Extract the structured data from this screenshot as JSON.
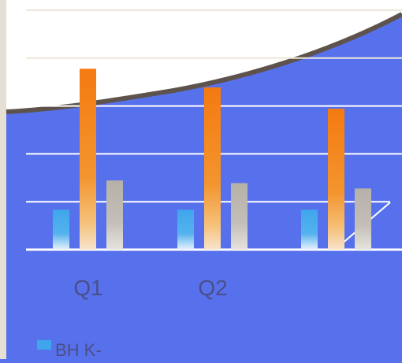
{
  "colors": {
    "background": "#5771ec",
    "sheet": "#ffffff",
    "frame": "#e6dfd3",
    "curve": "#5e534c",
    "gridline_light": "#ece7d8",
    "gridline_dark": "#ffffff",
    "label": "#4a4f86"
  },
  "chart_data": {
    "type": "bar",
    "categories": [
      "Q1",
      "Q2",
      ""
    ],
    "series": [
      {
        "name": "",
        "color": "#3fa6ec",
        "values": [
          0.75,
          0.75,
          0.75
        ]
      },
      {
        "name": "",
        "color": "#f47a10",
        "values": [
          3.4,
          3.05,
          2.65
        ]
      },
      {
        "name": "",
        "color": "#b5b0a8",
        "values": [
          1.3,
          1.25,
          1.15
        ]
      }
    ],
    "ylim": [
      0,
      4.5
    ],
    "grid": true,
    "legend": {
      "position": "bottom-left",
      "visible_text": "BH K-"
    }
  }
}
